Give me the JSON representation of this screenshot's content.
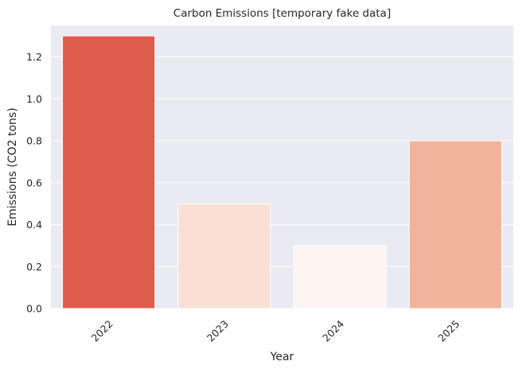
{
  "chart_data": {
    "type": "bar",
    "title": "Carbon Emissions [temporary fake data]",
    "xlabel": "Year",
    "ylabel": "Emissions (CO2 tons)",
    "categories": [
      "2022",
      "2023",
      "2024",
      "2025"
    ],
    "values": [
      1.3,
      0.5,
      0.3,
      0.8
    ],
    "bar_colors": [
      "#dd5c4c",
      "#f9e0d5",
      "#fdf4f1",
      "#f0b49b"
    ],
    "ylim": [
      0,
      1.35
    ],
    "yticks": [
      "0.0",
      "0.2",
      "0.4",
      "0.6",
      "0.8",
      "1.0",
      "1.2"
    ],
    "grid": true,
    "plot_background": "#eaeaf2",
    "grid_color": "#ffffff"
  }
}
